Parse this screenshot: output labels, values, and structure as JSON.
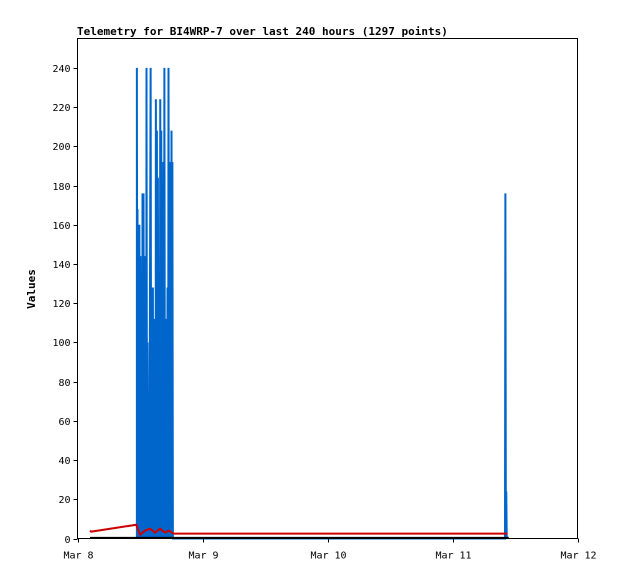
{
  "chart_data": {
    "type": "line",
    "title": "Telemetry for BI4WRP-7 over last 240 hours (1297 points)",
    "xlabel": "",
    "ylabel": "Values",
    "x_tick_labels": [
      "Mar 8",
      "Mar 9",
      "Mar 10",
      "Mar 11",
      "Mar 12"
    ],
    "x_tick_days": [
      8,
      9,
      10,
      11,
      12
    ],
    "xlim": [
      8,
      12
    ],
    "y_ticks": [
      0,
      20,
      40,
      60,
      80,
      100,
      120,
      140,
      160,
      180,
      200,
      220,
      240
    ],
    "ylim": [
      0,
      255
    ],
    "grid": false,
    "legend": "none",
    "series": [
      {
        "color": "#0066cc",
        "points": [
          [
            8.475,
            0
          ],
          [
            8.475,
            240
          ],
          [
            8.479,
            0
          ],
          [
            8.48,
            168
          ],
          [
            8.485,
            0
          ],
          [
            8.487,
            144
          ],
          [
            8.492,
            0
          ],
          [
            8.495,
            160
          ],
          [
            8.5,
            0
          ],
          [
            8.503,
            144
          ],
          [
            8.509,
            0
          ],
          [
            8.513,
            48
          ],
          [
            8.518,
            0
          ],
          [
            8.52,
            176
          ],
          [
            8.525,
            0
          ],
          [
            8.528,
            176
          ],
          [
            8.533,
            0
          ],
          [
            8.537,
            144
          ],
          [
            8.542,
            0
          ],
          [
            8.545,
            128
          ],
          [
            8.55,
            0
          ],
          [
            8.552,
            240
          ],
          [
            8.556,
            0
          ],
          [
            8.56,
            100
          ],
          [
            8.565,
            0
          ],
          [
            8.568,
            48
          ],
          [
            8.574,
            0
          ],
          [
            8.585,
            240
          ],
          [
            8.59,
            0
          ],
          [
            8.594,
            128
          ],
          [
            8.6,
            0
          ],
          [
            8.603,
            128
          ],
          [
            8.609,
            0
          ],
          [
            8.613,
            112
          ],
          [
            8.618,
            0
          ],
          [
            8.62,
            64
          ],
          [
            8.625,
            0
          ],
          [
            8.627,
            224
          ],
          [
            8.632,
            0
          ],
          [
            8.635,
            208
          ],
          [
            8.64,
            0
          ],
          [
            8.643,
            184
          ],
          [
            8.648,
            0
          ],
          [
            8.652,
            32
          ],
          [
            8.658,
            0
          ],
          [
            8.662,
            224
          ],
          [
            8.667,
            0
          ],
          [
            8.67,
            208
          ],
          [
            8.675,
            0
          ],
          [
            8.678,
            96
          ],
          [
            8.683,
            0
          ],
          [
            8.687,
            192
          ],
          [
            8.692,
            0
          ],
          [
            8.695,
            240
          ],
          [
            8.7,
            0
          ],
          [
            8.703,
            64
          ],
          [
            8.708,
            0
          ],
          [
            8.712,
            112
          ],
          [
            8.717,
            0
          ],
          [
            8.72,
            128
          ],
          [
            8.725,
            0
          ],
          [
            8.728,
            240
          ],
          [
            8.733,
            0
          ],
          [
            8.736,
            192
          ],
          [
            8.741,
            0
          ],
          [
            8.744,
            88
          ],
          [
            8.749,
            0
          ],
          [
            8.752,
            208
          ],
          [
            8.757,
            0
          ],
          [
            8.759,
            192
          ],
          [
            8.763,
            0
          ],
          [
            8.772,
            0
          ],
          [
            11.42,
            0
          ],
          [
            11.423,
            176
          ],
          [
            11.427,
            0
          ],
          [
            11.43,
            24
          ],
          [
            11.434,
            0
          ]
        ]
      },
      {
        "color": "#cc0000",
        "points": [
          [
            8.1,
            4
          ],
          [
            8.11,
            3.5
          ],
          [
            8.47,
            7
          ],
          [
            8.5,
            2
          ],
          [
            8.54,
            4
          ],
          [
            8.58,
            5
          ],
          [
            8.62,
            3
          ],
          [
            8.66,
            5
          ],
          [
            8.7,
            3
          ],
          [
            8.73,
            4
          ],
          [
            8.77,
            2.5
          ],
          [
            9.0,
            2.5
          ],
          [
            10.0,
            2.5
          ],
          [
            11.0,
            2.5
          ],
          [
            11.44,
            2.5
          ]
        ]
      },
      {
        "color": "#000000",
        "points": [
          [
            8.1,
            0.3
          ],
          [
            8.5,
            0.3
          ],
          [
            9.0,
            0.3
          ],
          [
            10.0,
            0.3
          ],
          [
            11.0,
            0.3
          ],
          [
            11.45,
            0.3
          ]
        ]
      }
    ]
  }
}
